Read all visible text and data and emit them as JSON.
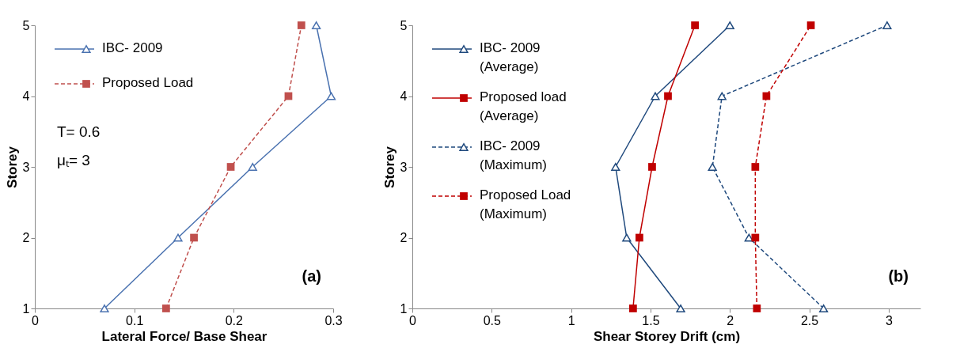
{
  "chart_data": [
    {
      "type": "line",
      "xlabel": "Lateral Force/ Base Shear",
      "ylabel": "Storey",
      "xlim": [
        0,
        0.3
      ],
      "xticks": [
        0,
        0.1,
        0.2,
        0.3
      ],
      "ylim": [
        1,
        5
      ],
      "yticks": [
        1,
        2,
        3,
        4,
        5
      ],
      "legend": "top left",
      "grid": false,
      "series": [
        {
          "name": "IBC- 2009",
          "color": "#4a72b0",
          "marker": "triangle",
          "line_style": "solid",
          "x": [
            0.07,
            0.144,
            0.219,
            0.298,
            0.283
          ],
          "values": [
            1,
            2,
            3,
            4,
            5
          ]
        },
        {
          "name": "Proposed Load",
          "color": "#c0504d",
          "marker": "square",
          "line_style": "dashed",
          "x": [
            0.132,
            0.16,
            0.197,
            0.255,
            0.268
          ],
          "values": [
            1,
            2,
            3,
            4,
            5
          ]
        }
      ],
      "annotations": [
        "T= 0.6",
        "μₜ= 3",
        "(a)"
      ]
    },
    {
      "type": "line",
      "xlabel": "Shear Storey Drift (cm)",
      "ylabel": "Storey",
      "xlim": [
        0,
        3.2
      ],
      "xticks": [
        0,
        0.5,
        1,
        1.5,
        2,
        2.5,
        3
      ],
      "ylim": [
        1,
        5
      ],
      "yticks": [
        1,
        2,
        3,
        4,
        5
      ],
      "legend": "top left",
      "grid": false,
      "series": [
        {
          "name": "IBC- 2009 (Average)",
          "color": "#1f497d",
          "marker": "triangle",
          "line_style": "solid",
          "x": [
            1.69,
            1.35,
            1.28,
            1.53,
            2.0
          ],
          "values": [
            1,
            2,
            3,
            4,
            5
          ]
        },
        {
          "name": "Proposed load (Average)",
          "color": "#c00000",
          "marker": "square",
          "line_style": "solid",
          "x": [
            1.39,
            1.43,
            1.51,
            1.61,
            1.78
          ],
          "values": [
            1,
            2,
            3,
            4,
            5
          ]
        },
        {
          "name": "IBC- 2009 (Maximum)",
          "color": "#1f497d",
          "marker": "triangle",
          "line_style": "dashed",
          "x": [
            2.59,
            2.12,
            1.89,
            1.95,
            2.99
          ],
          "values": [
            1,
            2,
            3,
            4,
            5
          ]
        },
        {
          "name": "Proposed Load (Maximum)",
          "color": "#c00000",
          "marker": "square",
          "line_style": "dashed",
          "x": [
            2.17,
            2.16,
            2.16,
            2.23,
            2.51
          ],
          "values": [
            1,
            2,
            3,
            4,
            5
          ]
        }
      ],
      "annotations": [
        "(b)"
      ]
    }
  ]
}
